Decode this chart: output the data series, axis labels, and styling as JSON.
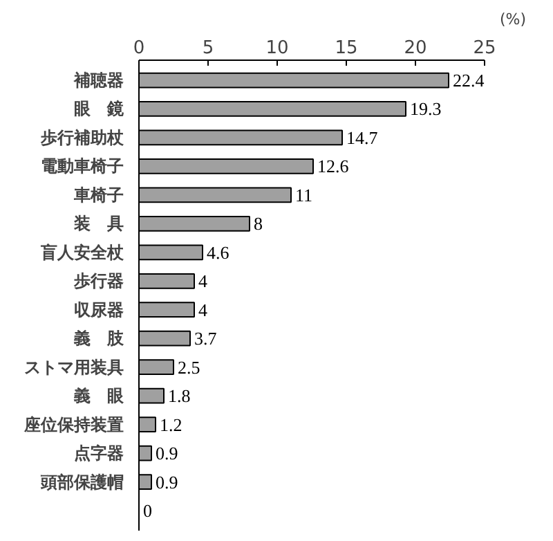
{
  "chart_data": {
    "type": "bar",
    "orientation": "horizontal",
    "xlabel": "(%)",
    "categories": [
      "補聴器",
      "眼　鏡",
      "歩行補助杖",
      "電動車椅子",
      "車椅子",
      "装　具",
      "盲人安全杖",
      "歩行器",
      "収尿器",
      "義　肢",
      "ストマ用装具",
      "義　眼",
      "座位保持装置",
      "点字器",
      "頭部保護帽",
      null
    ],
    "values": [
      22.4,
      19.3,
      14.7,
      12.6,
      11,
      8,
      4.6,
      4,
      4,
      3.7,
      2.5,
      1.8,
      1.2,
      0.9,
      0.9,
      0
    ],
    "color": "#a0a0a0",
    "xlim": [
      0,
      25
    ],
    "xticks": [
      0,
      5,
      10,
      15,
      20,
      25
    ],
    "data_labels": true,
    "grid": false
  }
}
